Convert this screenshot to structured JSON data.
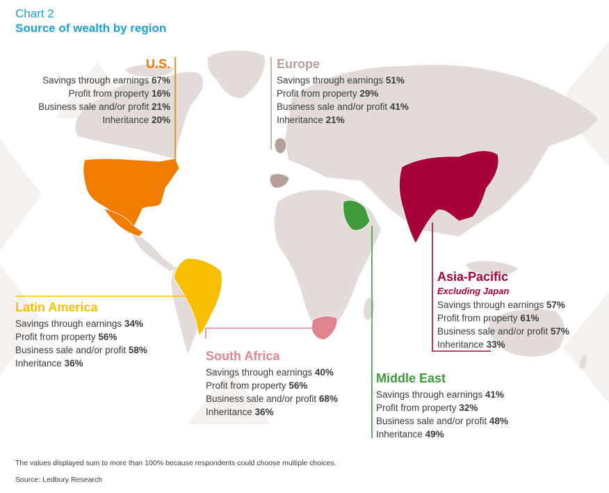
{
  "header": {
    "chart_number": "Chart 2",
    "title": "Source of wealth by region"
  },
  "colors": {
    "land": "#e3dbd7",
    "watermark": "#f4f1ef",
    "us": "#f07d00",
    "europe": "#b5a199",
    "latin_america": "#f8bf00",
    "south_africa": "#e08590",
    "middle_east": "#3e9a3a",
    "asia_pacific": "#a8003a",
    "title": "#1aa0d8"
  },
  "regions": [
    {
      "id": "us",
      "name": "U.S.",
      "subtitle": "",
      "stats": [
        {
          "label": "Savings through earnings",
          "value": "67%"
        },
        {
          "label": "Profit from property",
          "value": "16%"
        },
        {
          "label": "Business sale and/or profit",
          "value": "21%"
        },
        {
          "label": "Inheritance",
          "value": "20%"
        }
      ]
    },
    {
      "id": "europe",
      "name": "Europe",
      "subtitle": "",
      "stats": [
        {
          "label": "Savings through earnings",
          "value": "51%"
        },
        {
          "label": "Profit from property",
          "value": "29%"
        },
        {
          "label": "Business sale and/or profit",
          "value": "41%"
        },
        {
          "label": "Inheritance",
          "value": "21%"
        }
      ]
    },
    {
      "id": "latin_america",
      "name": "Latin America",
      "subtitle": "",
      "stats": [
        {
          "label": "Savings through earnings",
          "value": "34%"
        },
        {
          "label": "Profit from property",
          "value": "56%"
        },
        {
          "label": "Business sale and/or profit",
          "value": "58%"
        },
        {
          "label": "Inheritance",
          "value": "36%"
        }
      ]
    },
    {
      "id": "south_africa",
      "name": "South Africa",
      "subtitle": "",
      "stats": [
        {
          "label": "Savings through earnings",
          "value": "40%"
        },
        {
          "label": "Profit from property",
          "value": "56%"
        },
        {
          "label": "Business sale and/or profit",
          "value": "68%"
        },
        {
          "label": "Inheritance",
          "value": "36%"
        }
      ]
    },
    {
      "id": "middle_east",
      "name": "Middle East",
      "subtitle": "",
      "stats": [
        {
          "label": "Savings through earnings",
          "value": "41%"
        },
        {
          "label": "Profit from property",
          "value": "32%"
        },
        {
          "label": "Business sale and/or profit",
          "value": "48%"
        },
        {
          "label": "Inheritance",
          "value": "49%"
        }
      ]
    },
    {
      "id": "asia_pacific",
      "name": "Asia-Pacific",
      "subtitle": "Excluding Japan",
      "stats": [
        {
          "label": "Savings through earnings",
          "value": "57%"
        },
        {
          "label": "Profit from property",
          "value": "61%"
        },
        {
          "label": "Business sale and/or profit",
          "value": "57%"
        },
        {
          "label": "Inheritance",
          "value": "33%"
        }
      ]
    }
  ],
  "footer": {
    "note": "The values displayed sum to more than 100% because respondents could choose multiple choices.",
    "source": "Source: Ledbury Research"
  }
}
